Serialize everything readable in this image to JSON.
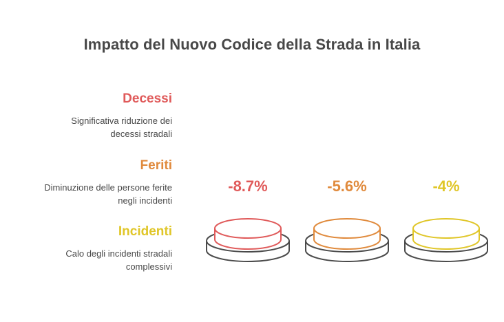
{
  "title": "Impatto del Nuovo Codice della Strada in Italia",
  "categories": [
    {
      "title": "Decessi",
      "desc_lines": [
        "Significativa riduzione dei",
        "decessi stradali"
      ],
      "value": "-8.7%",
      "color": "#E05A5A"
    },
    {
      "title": "Feriti",
      "desc_lines": [
        "Diminuzione delle persone ferite",
        "negli incidenti"
      ],
      "value": "-5.6%",
      "color": "#E08A3C"
    },
    {
      "title": "Incidenti",
      "desc_lines": [
        "Calo degli incidenti stradali",
        "complessivi"
      ],
      "value": "-4%",
      "color": "#E0C628"
    }
  ],
  "chart_data": {
    "type": "bar",
    "title": "Impatto del Nuovo Codice della Strada in Italia",
    "categories": [
      "Decessi",
      "Feriti",
      "Incidenti"
    ],
    "values": [
      -8.7,
      -5.6,
      -4
    ],
    "unit": "%"
  }
}
